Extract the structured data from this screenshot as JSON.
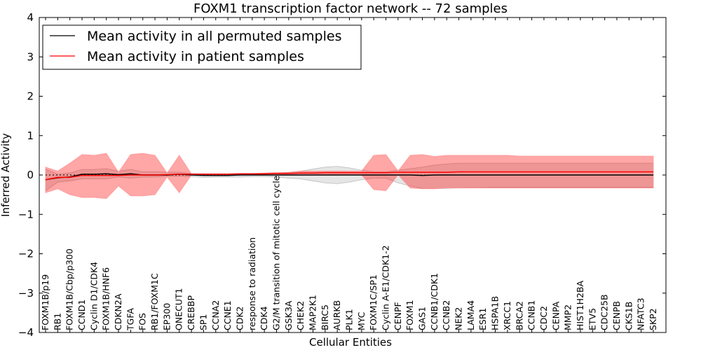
{
  "chart_data": {
    "type": "line",
    "title": "FOXM1 transcription factor network -- 72 samples",
    "xlabel": "Cellular Entities",
    "ylabel": "Inferred Activity",
    "ylim": [
      -4,
      4
    ],
    "yticks": [
      -4,
      -3,
      -2,
      -1,
      0,
      1,
      2,
      3,
      4
    ],
    "ytick_labels": [
      "−4",
      "−3",
      "−2",
      "−1",
      "0",
      "1",
      "2",
      "3",
      "4"
    ],
    "grid": false,
    "legend_position": "top-left",
    "reference_line": 0,
    "categories": [
      "FOXM1B/p19",
      "RB1",
      "FOXM1B/Cbp/p300",
      "CCND1",
      "Cyclin D1/CDK4",
      "FOXM1B/HNF6",
      "CDKN2A",
      "TGFA",
      "FOS",
      "RB1/FOXM1C",
      "EP300",
      "ONECUT1",
      "CREBBP",
      "SP1",
      "CCNA2",
      "CCNE1",
      "CDK2",
      "response to radiation",
      "CDK4",
      "G2/M transition of mitotic cell cycle",
      "GSK3A",
      "CHEK2",
      "MAP2K1",
      "BIRC5",
      "AURKB",
      "PLK1",
      "MYC",
      "FOXM1C/SP1",
      "Cyclin A-E1/CDK1-2",
      "CENPF",
      "FOXM1",
      "GAS1",
      "CCNB1/CDK1",
      "CCNB2",
      "NEK2",
      "LAMA4",
      "ESR1",
      "HSPA1B",
      "XRCC1",
      "BRCA2",
      "CCNB1",
      "CDC2",
      "CENPA",
      "MMP2",
      "HIST1H2BA",
      "ETV5",
      "CDC25B",
      "CENPB",
      "CKS1B",
      "NFATC3",
      "SKP2"
    ],
    "series": [
      {
        "name": "Mean activity in all permuted samples",
        "color": "#000000",
        "values": [
          -0.12,
          -0.07,
          -0.05,
          0.02,
          0.02,
          0.03,
          0.01,
          0.03,
          0.0,
          0.0,
          0.0,
          0.02,
          0.0,
          -0.01,
          -0.01,
          -0.01,
          0.0,
          0.0,
          0.0,
          0.0,
          0.0,
          0.0,
          0.0,
          0.0,
          0.0,
          0.0,
          0.0,
          0.0,
          0.0,
          0.0,
          0.0,
          -0.01,
          0.0,
          0.0,
          0.0,
          0.0,
          0.0,
          0.0,
          0.0,
          0.0,
          0.0,
          0.0,
          0.0,
          0.0,
          0.0,
          0.0,
          0.0,
          0.0,
          0.0,
          0.0,
          0.0
        ],
        "lower": [
          -0.4,
          -0.18,
          -0.15,
          -0.1,
          -0.1,
          -0.1,
          -0.05,
          -0.08,
          -0.05,
          -0.05,
          -0.03,
          -0.03,
          -0.04,
          -0.06,
          -0.05,
          -0.05,
          -0.05,
          -0.04,
          -0.04,
          -0.05,
          -0.08,
          -0.1,
          -0.15,
          -0.2,
          -0.22,
          -0.18,
          -0.12,
          -0.08,
          -0.08,
          -0.2,
          -0.28,
          -0.34,
          -0.35,
          -0.34,
          -0.33,
          -0.32,
          -0.32,
          -0.31,
          -0.31,
          -0.31,
          -0.31,
          -0.31,
          -0.31,
          -0.31,
          -0.31,
          -0.31,
          -0.31,
          -0.31,
          -0.31,
          -0.31,
          -0.31
        ],
        "upper": [
          0.15,
          0.02,
          0.05,
          0.14,
          0.14,
          0.16,
          0.1,
          0.14,
          0.08,
          0.08,
          0.07,
          0.07,
          0.04,
          0.03,
          0.03,
          0.03,
          0.03,
          0.03,
          0.04,
          0.04,
          0.06,
          0.1,
          0.15,
          0.2,
          0.22,
          0.18,
          0.12,
          0.08,
          0.08,
          0.12,
          0.16,
          0.2,
          0.25,
          0.28,
          0.3,
          0.3,
          0.3,
          0.3,
          0.3,
          0.3,
          0.3,
          0.3,
          0.3,
          0.3,
          0.3,
          0.3,
          0.3,
          0.3,
          0.3,
          0.3,
          0.3
        ]
      },
      {
        "name": "Mean activity in patient samples",
        "color": "#ff0000",
        "values": [
          -0.12,
          -0.06,
          -0.06,
          -0.01,
          -0.01,
          -0.01,
          -0.01,
          0.0,
          0.0,
          0.0,
          0.01,
          0.02,
          0.02,
          0.02,
          0.02,
          0.02,
          0.03,
          0.03,
          0.03,
          0.04,
          0.04,
          0.05,
          0.05,
          0.06,
          0.06,
          0.06,
          0.06,
          0.06,
          0.06,
          0.07,
          0.07,
          0.07,
          0.07,
          0.07,
          0.08,
          0.08,
          0.08,
          0.08,
          0.08,
          0.08,
          0.08,
          0.08,
          0.08,
          0.08,
          0.08,
          0.08,
          0.08,
          0.08,
          0.08,
          0.08,
          0.08
        ],
        "lower": [
          -0.45,
          -0.35,
          -0.5,
          -0.57,
          -0.57,
          -0.6,
          -0.28,
          -0.53,
          -0.53,
          -0.5,
          -0.05,
          -0.45,
          0.0,
          0.0,
          0.0,
          0.0,
          0.0,
          0.0,
          0.01,
          0.01,
          0.0,
          0.0,
          0.0,
          0.0,
          0.0,
          0.0,
          0.0,
          -0.37,
          -0.4,
          0.0,
          -0.33,
          -0.35,
          -0.35,
          -0.33,
          -0.33,
          -0.33,
          -0.33,
          -0.33,
          -0.33,
          -0.33,
          -0.33,
          -0.33,
          -0.33,
          -0.33,
          -0.33,
          -0.33,
          -0.33,
          -0.33,
          -0.33,
          -0.33,
          -0.33
        ],
        "upper": [
          0.2,
          0.1,
          0.3,
          0.52,
          0.5,
          0.55,
          0.07,
          0.52,
          0.55,
          0.5,
          0.05,
          0.5,
          0.03,
          0.03,
          0.03,
          0.03,
          0.04,
          0.04,
          0.05,
          0.06,
          0.07,
          0.1,
          0.1,
          0.1,
          0.1,
          0.1,
          0.1,
          0.5,
          0.52,
          0.1,
          0.5,
          0.52,
          0.47,
          0.5,
          0.5,
          0.5,
          0.5,
          0.5,
          0.5,
          0.48,
          0.48,
          0.48,
          0.48,
          0.48,
          0.48,
          0.48,
          0.48,
          0.48,
          0.48,
          0.48,
          0.48
        ]
      }
    ]
  }
}
